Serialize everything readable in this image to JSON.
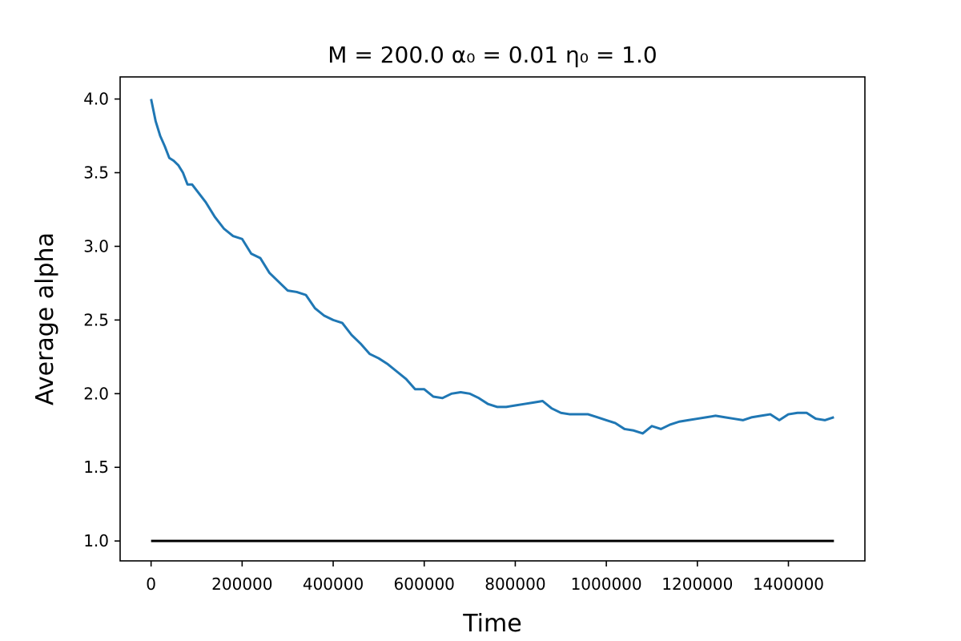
{
  "chart_data": {
    "type": "line",
    "title": "M = 200.0 α₀ = 0.01 η₀ = 1.0",
    "xlabel": "Time",
    "ylabel": "Average alpha",
    "xlim": [
      -68000,
      1568000
    ],
    "ylim": [
      0.865,
      4.15
    ],
    "xticks": [
      0,
      200000,
      400000,
      600000,
      800000,
      1000000,
      1200000,
      1400000
    ],
    "xtick_labels": [
      "0",
      "200000",
      "400000",
      "600000",
      "800000",
      "1000000",
      "1200000",
      "1400000"
    ],
    "yticks": [
      1.0,
      1.5,
      2.0,
      2.5,
      3.0,
      3.5,
      4.0
    ],
    "ytick_labels": [
      "1.0",
      "1.5",
      "2.0",
      "2.5",
      "3.0",
      "3.5",
      "4.0"
    ],
    "grid": false,
    "series": [
      {
        "color": "#1f77b4",
        "x": [
          0,
          10000,
          20000,
          30000,
          40000,
          50000,
          60000,
          70000,
          80000,
          90000,
          100000,
          120000,
          140000,
          160000,
          180000,
          200000,
          220000,
          240000,
          260000,
          280000,
          300000,
          320000,
          340000,
          360000,
          380000,
          400000,
          420000,
          440000,
          460000,
          480000,
          500000,
          520000,
          540000,
          560000,
          580000,
          600000,
          620000,
          640000,
          660000,
          680000,
          700000,
          720000,
          740000,
          760000,
          780000,
          800000,
          820000,
          840000,
          860000,
          880000,
          900000,
          920000,
          940000,
          960000,
          980000,
          1000000,
          1020000,
          1040000,
          1060000,
          1080000,
          1100000,
          1120000,
          1140000,
          1160000,
          1180000,
          1200000,
          1220000,
          1240000,
          1260000,
          1280000,
          1300000,
          1320000,
          1340000,
          1360000,
          1380000,
          1400000,
          1420000,
          1440000,
          1460000,
          1480000,
          1500000
        ],
        "y": [
          4.0,
          3.85,
          3.75,
          3.68,
          3.6,
          3.58,
          3.55,
          3.5,
          3.42,
          3.42,
          3.38,
          3.3,
          3.2,
          3.12,
          3.07,
          3.05,
          2.95,
          2.92,
          2.82,
          2.76,
          2.7,
          2.69,
          2.67,
          2.58,
          2.53,
          2.5,
          2.48,
          2.4,
          2.34,
          2.27,
          2.24,
          2.2,
          2.15,
          2.1,
          2.03,
          2.03,
          1.98,
          1.97,
          2.0,
          2.01,
          2.0,
          1.97,
          1.93,
          1.91,
          1.91,
          1.92,
          1.93,
          1.94,
          1.95,
          1.9,
          1.87,
          1.86,
          1.86,
          1.86,
          1.84,
          1.82,
          1.8,
          1.76,
          1.75,
          1.73,
          1.78,
          1.76,
          1.79,
          1.81,
          1.82,
          1.83,
          1.84,
          1.85,
          1.84,
          1.83,
          1.82,
          1.84,
          1.85,
          1.86,
          1.82,
          1.86,
          1.87,
          1.87,
          1.83,
          1.82,
          1.84
        ]
      },
      {
        "color": "#000000",
        "x": [
          0,
          1500000
        ],
        "y": [
          1.0,
          1.0
        ]
      }
    ]
  }
}
